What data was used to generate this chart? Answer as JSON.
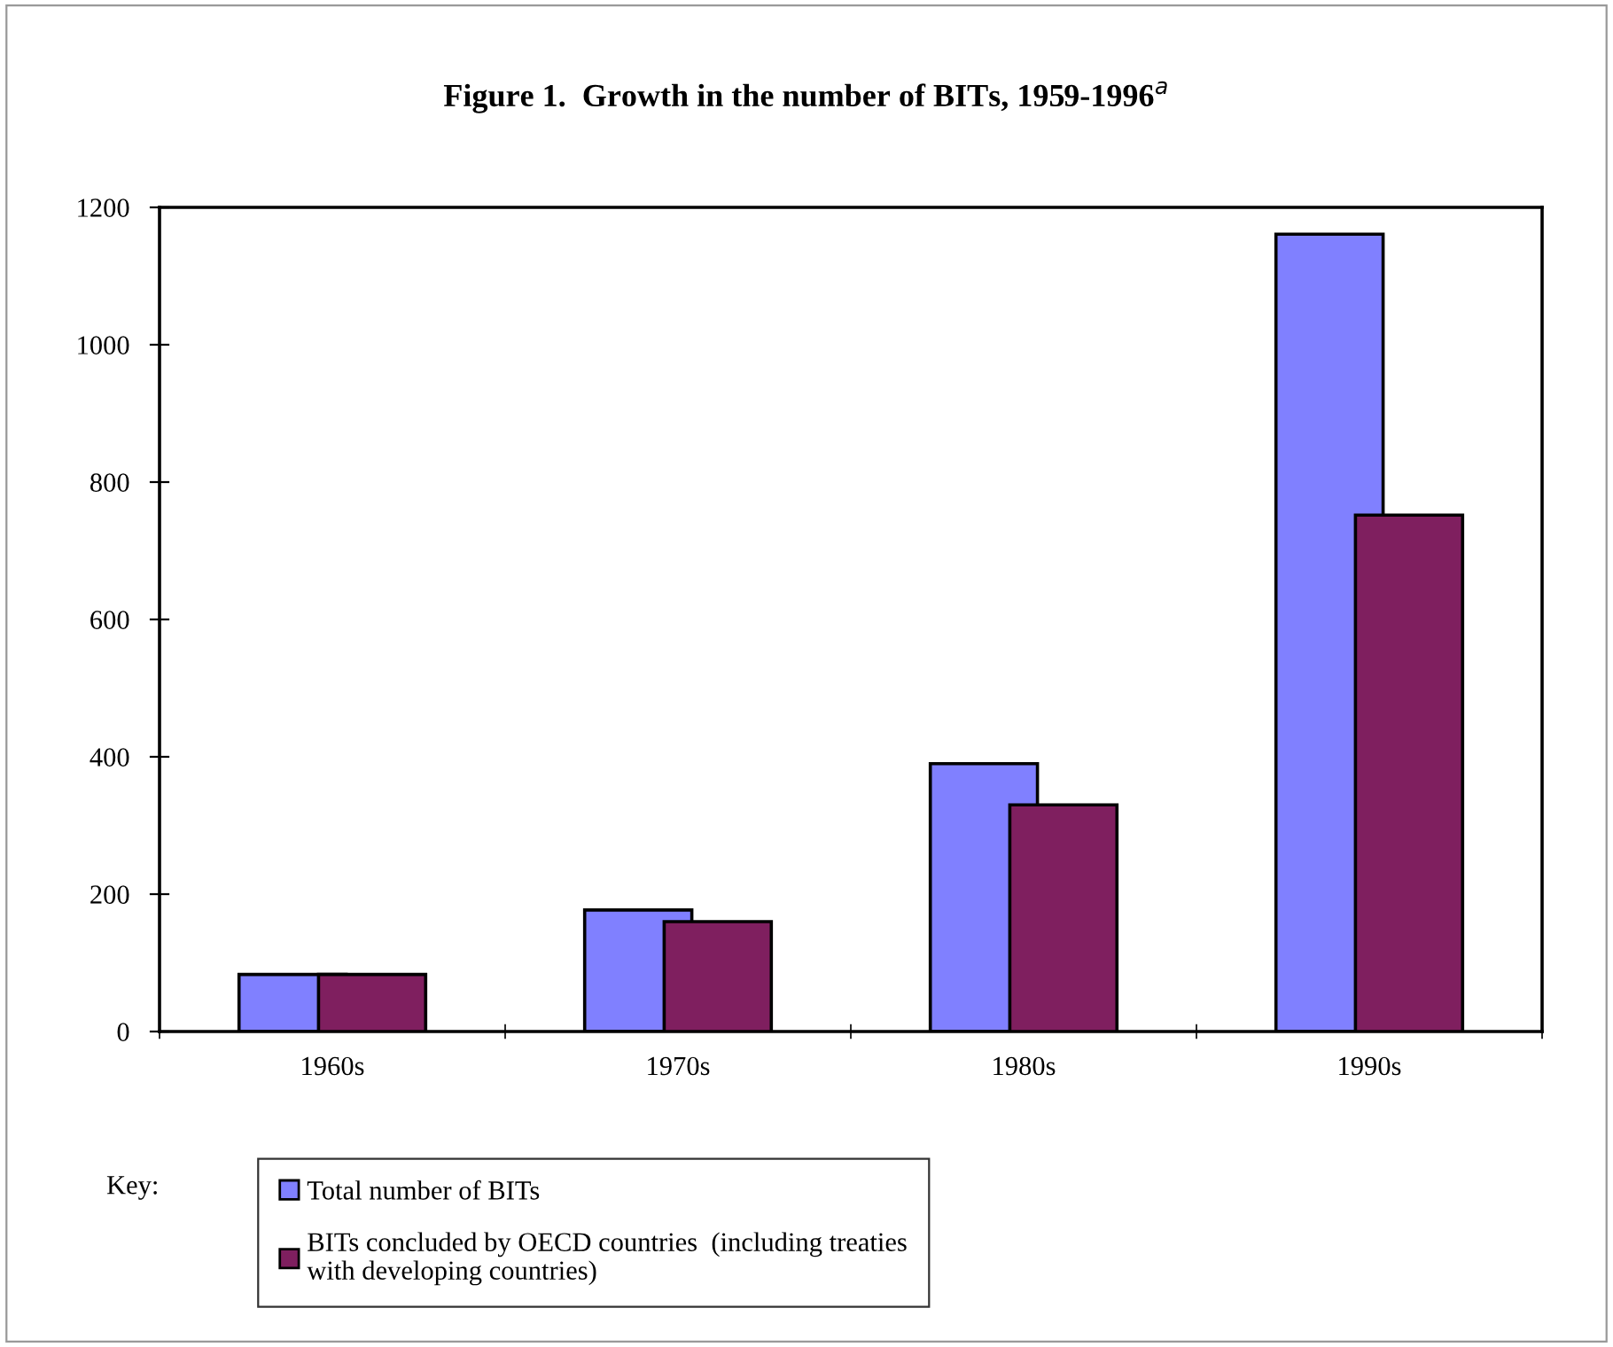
{
  "chart_data": {
    "type": "bar",
    "title": "Figure 1.  Growth in the number of BITs, 1959-1996$^{a}$",
    "categories": [
      "1960s",
      "1970s",
      "1980s",
      "1990s"
    ],
    "series": [
      {
        "name": "Total number of BITs",
        "color": "#8080ff",
        "values": [
          83,
          177,
          390,
          1161
        ]
      },
      {
        "name": "BITs concluded by OECD countries  (including treaties\nwith developing countries)",
        "color": "#7f1f5f",
        "values": [
          83,
          160,
          330,
          752
        ]
      }
    ],
    "ylim": [
      0,
      1200
    ],
    "yticks": [
      0,
      200,
      400,
      600,
      800,
      1000,
      1200
    ],
    "grid": false,
    "legend": "bottom",
    "legend_title": "Key:"
  }
}
